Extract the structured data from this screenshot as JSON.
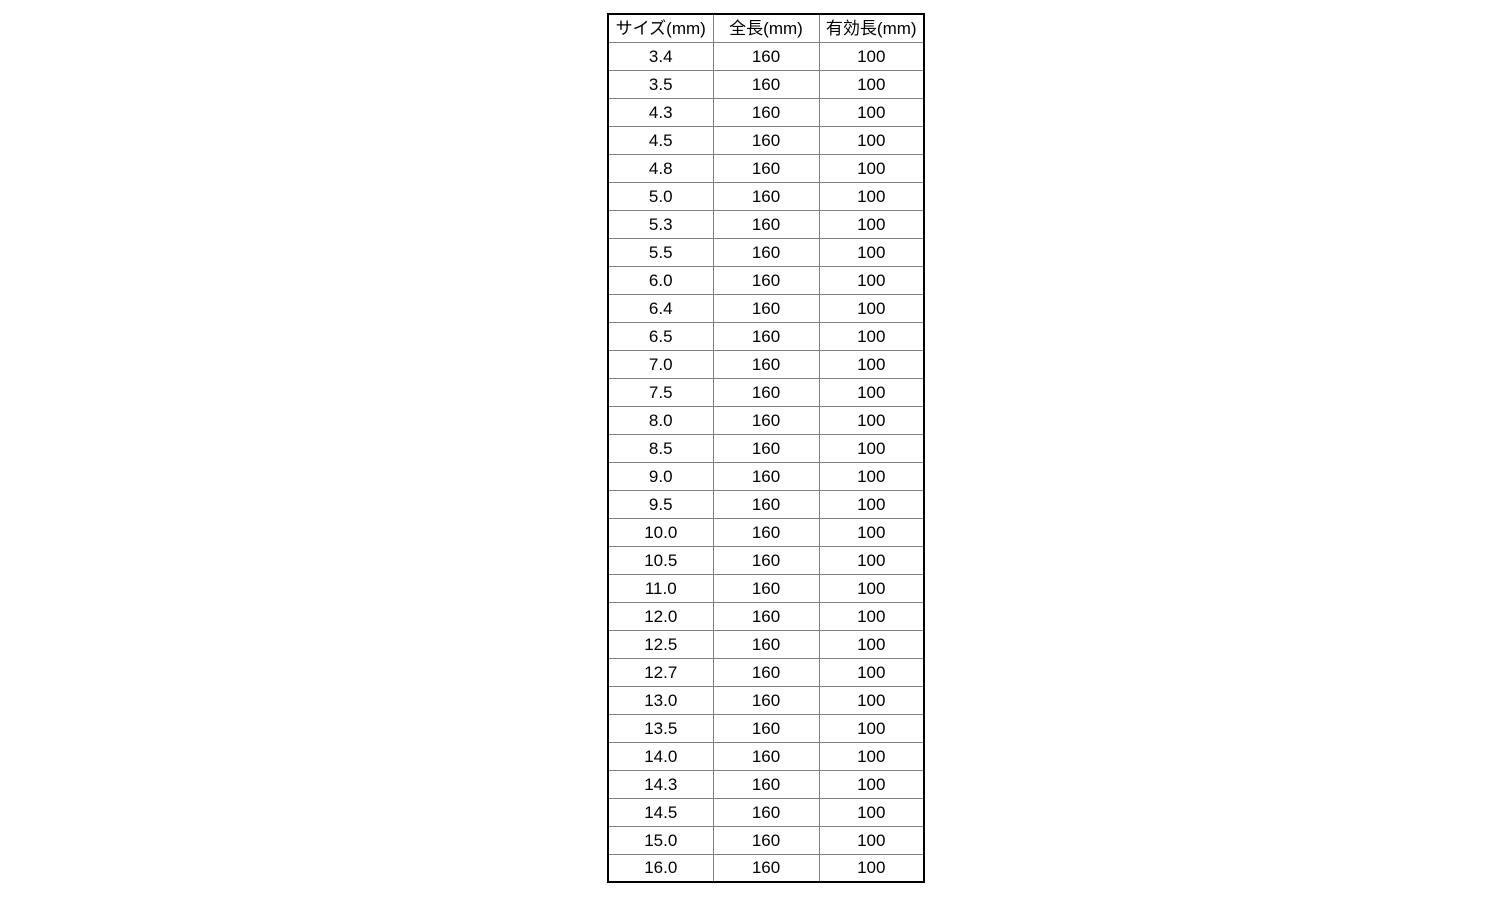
{
  "chart_data": {
    "type": "table",
    "columns": [
      "サイズ(mm)",
      "全長(mm)",
      "有効長(mm)"
    ],
    "rows": [
      [
        "3.4",
        "160",
        "100"
      ],
      [
        "3.5",
        "160",
        "100"
      ],
      [
        "4.3",
        "160",
        "100"
      ],
      [
        "4.5",
        "160",
        "100"
      ],
      [
        "4.8",
        "160",
        "100"
      ],
      [
        "5.0",
        "160",
        "100"
      ],
      [
        "5.3",
        "160",
        "100"
      ],
      [
        "5.5",
        "160",
        "100"
      ],
      [
        "6.0",
        "160",
        "100"
      ],
      [
        "6.4",
        "160",
        "100"
      ],
      [
        "6.5",
        "160",
        "100"
      ],
      [
        "7.0",
        "160",
        "100"
      ],
      [
        "7.5",
        "160",
        "100"
      ],
      [
        "8.0",
        "160",
        "100"
      ],
      [
        "8.5",
        "160",
        "100"
      ],
      [
        "9.0",
        "160",
        "100"
      ],
      [
        "9.5",
        "160",
        "100"
      ],
      [
        "10.0",
        "160",
        "100"
      ],
      [
        "10.5",
        "160",
        "100"
      ],
      [
        "11.0",
        "160",
        "100"
      ],
      [
        "12.0",
        "160",
        "100"
      ],
      [
        "12.5",
        "160",
        "100"
      ],
      [
        "12.7",
        "160",
        "100"
      ],
      [
        "13.0",
        "160",
        "100"
      ],
      [
        "13.5",
        "160",
        "100"
      ],
      [
        "14.0",
        "160",
        "100"
      ],
      [
        "14.3",
        "160",
        "100"
      ],
      [
        "14.5",
        "160",
        "100"
      ],
      [
        "15.0",
        "160",
        "100"
      ],
      [
        "16.0",
        "160",
        "100"
      ]
    ]
  },
  "colors": {
    "outer_border": "#000000",
    "grid_line": "#808080",
    "text": "#000000",
    "background": "#ffffff"
  }
}
